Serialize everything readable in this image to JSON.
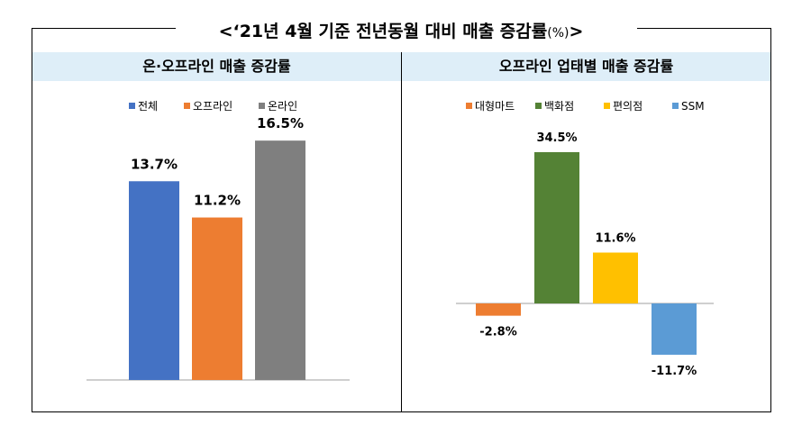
{
  "title": {
    "prefix": "<",
    "text": "‘21년 4월 기준 전년동월 대비 매출 증감률",
    "unit": "(%)",
    "suffix": ">"
  },
  "chart_data": [
    {
      "type": "bar",
      "title": "온·오프라인 매출 증감률",
      "categories": [
        "전체",
        "오프라인",
        "온라인"
      ],
      "values": [
        13.7,
        11.2,
        16.5
      ],
      "value_labels": [
        "13.7%",
        "11.2%",
        "16.5%"
      ],
      "colors": [
        "#4472c4",
        "#ed7d31",
        "#7f7f7f"
      ],
      "ylim": [
        0,
        18
      ],
      "legend": "top",
      "grid": false
    },
    {
      "type": "bar",
      "title": "오프라인 업태별 매출 증감률",
      "categories": [
        "대형마트",
        "백화점",
        "편의점",
        "SSM"
      ],
      "values": [
        -2.8,
        34.5,
        11.6,
        -11.7
      ],
      "value_labels": [
        "-2.8%",
        "34.5%",
        "11.6%",
        "-11.7%"
      ],
      "colors": [
        "#ed7d31",
        "#548235",
        "#ffc000",
        "#5b9bd5"
      ],
      "ylim": [
        -15,
        40
      ],
      "legend": "top",
      "grid": false
    }
  ]
}
